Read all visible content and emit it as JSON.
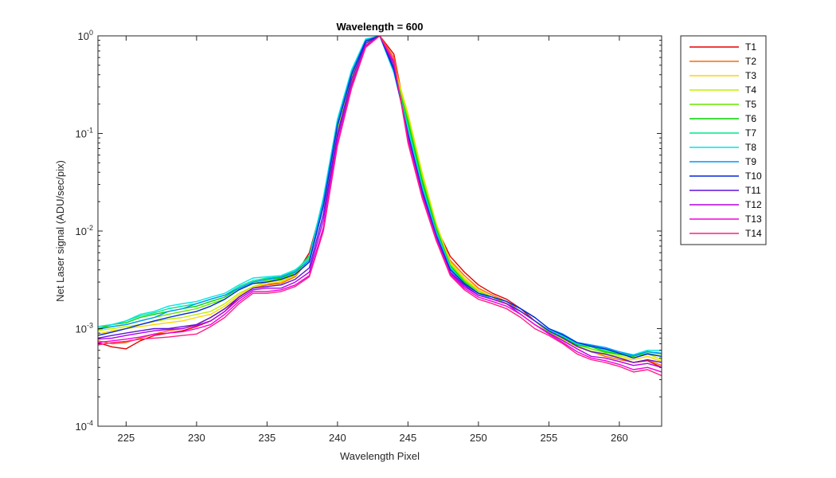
{
  "chart_data": {
    "type": "line",
    "title": "Wavelength = 600",
    "xlabel": "Wavelength Pixel",
    "ylabel": "Net Laser signal  (ADU/sec/pix)",
    "xlim": [
      223,
      263
    ],
    "ylim": [
      0.0001,
      1
    ],
    "yscale": "log",
    "grid": false,
    "legend_position": "outside-top-right",
    "x_ticks": [
      225,
      230,
      235,
      240,
      245,
      250,
      255,
      260
    ],
    "y_ticks": [
      {
        "value": 0.0001,
        "base": "10",
        "exp": "-4"
      },
      {
        "value": 0.001,
        "base": "10",
        "exp": "-3"
      },
      {
        "value": 0.01,
        "base": "10",
        "exp": "-2"
      },
      {
        "value": 0.1,
        "base": "10",
        "exp": "-1"
      },
      {
        "value": 1,
        "base": "10",
        "exp": "0"
      }
    ],
    "x": [
      223,
      224,
      225,
      226,
      227,
      228,
      229,
      230,
      231,
      232,
      233,
      234,
      235,
      236,
      237,
      238,
      239,
      240,
      241,
      242,
      243,
      244,
      245,
      246,
      247,
      248,
      249,
      250,
      251,
      252,
      253,
      254,
      255,
      256,
      257,
      258,
      259,
      260,
      261,
      262,
      263
    ],
    "series": [
      {
        "name": "T1",
        "color": "#e60000",
        "values": [
          0.00072,
          0.00065,
          0.00062,
          0.00075,
          0.00085,
          0.0009,
          0.00095,
          0.00105,
          0.0012,
          0.0015,
          0.0021,
          0.0026,
          0.0028,
          0.003,
          0.0035,
          0.006,
          0.02,
          0.1,
          0.35,
          0.8,
          1.0,
          0.65,
          0.12,
          0.03,
          0.011,
          0.0055,
          0.0038,
          0.0028,
          0.0023,
          0.002,
          0.0016,
          0.0012,
          0.00095,
          0.0008,
          0.00065,
          0.00058,
          0.00055,
          0.0005,
          0.00045,
          0.00047,
          0.0004
        ]
      },
      {
        "name": "T2",
        "color": "#ff6a00",
        "values": [
          0.00075,
          0.0007,
          0.00072,
          0.0008,
          0.00088,
          0.00095,
          0.001,
          0.0011,
          0.0013,
          0.0016,
          0.0021,
          0.0026,
          0.0028,
          0.0029,
          0.0034,
          0.0052,
          0.018,
          0.095,
          0.34,
          0.78,
          1.0,
          0.6,
          0.13,
          0.032,
          0.011,
          0.005,
          0.0035,
          0.0026,
          0.0022,
          0.0019,
          0.0015,
          0.0012,
          0.00093,
          0.00078,
          0.00065,
          0.00058,
          0.00052,
          0.00048,
          0.00045,
          0.00048,
          0.00042
        ]
      },
      {
        "name": "T3",
        "color": "#ffd400",
        "values": [
          0.00088,
          0.00095,
          0.001,
          0.00105,
          0.0011,
          0.00115,
          0.0012,
          0.0013,
          0.0014,
          0.0017,
          0.0022,
          0.0027,
          0.0029,
          0.003,
          0.0035,
          0.0052,
          0.018,
          0.1,
          0.36,
          0.82,
          1.0,
          0.5,
          0.16,
          0.04,
          0.012,
          0.0048,
          0.0033,
          0.0025,
          0.0021,
          0.0018,
          0.0015,
          0.0012,
          0.00092,
          0.00077,
          0.00065,
          0.00058,
          0.00054,
          0.0005,
          0.00048,
          0.00052,
          0.00046
        ]
      },
      {
        "name": "T4",
        "color": "#c0f000",
        "values": [
          0.00095,
          0.001,
          0.00105,
          0.0011,
          0.00118,
          0.00125,
          0.0013,
          0.0014,
          0.0015,
          0.0018,
          0.0023,
          0.0027,
          0.003,
          0.0031,
          0.0036,
          0.0053,
          0.019,
          0.11,
          0.38,
          0.85,
          1.0,
          0.48,
          0.15,
          0.038,
          0.0115,
          0.0047,
          0.0032,
          0.0024,
          0.0021,
          0.0018,
          0.0015,
          0.0012,
          0.0009,
          0.00077,
          0.00066,
          0.00059,
          0.00055,
          0.00052,
          0.0005,
          0.00055,
          0.00048
        ]
      },
      {
        "name": "T5",
        "color": "#66e600",
        "values": [
          0.001,
          0.00105,
          0.0011,
          0.0012,
          0.0013,
          0.0014,
          0.0015,
          0.0016,
          0.0018,
          0.002,
          0.0025,
          0.0029,
          0.0031,
          0.0032,
          0.0037,
          0.0055,
          0.02,
          0.12,
          0.4,
          0.88,
          1.0,
          0.45,
          0.14,
          0.035,
          0.011,
          0.0045,
          0.0031,
          0.0024,
          0.0021,
          0.0018,
          0.0015,
          0.0012,
          0.00092,
          0.0008,
          0.00068,
          0.00062,
          0.00057,
          0.00054,
          0.00052,
          0.00056,
          0.00052
        ]
      },
      {
        "name": "T6",
        "color": "#00d200",
        "values": [
          0.001,
          0.0011,
          0.00115,
          0.0013,
          0.0014,
          0.0015,
          0.0016,
          0.0017,
          0.0019,
          0.0021,
          0.0026,
          0.003,
          0.0032,
          0.0033,
          0.0038,
          0.0056,
          0.021,
          0.13,
          0.42,
          0.9,
          1.0,
          0.43,
          0.13,
          0.033,
          0.0105,
          0.0044,
          0.003,
          0.0023,
          0.002,
          0.0018,
          0.0015,
          0.0012,
          0.00094,
          0.00082,
          0.00068,
          0.00065,
          0.00058,
          0.00055,
          0.00052,
          0.00058,
          0.00055
        ]
      },
      {
        "name": "T7",
        "color": "#00e68c",
        "values": [
          0.00105,
          0.0011,
          0.0012,
          0.00135,
          0.00145,
          0.0016,
          0.0017,
          0.0018,
          0.002,
          0.0022,
          0.0027,
          0.0031,
          0.0033,
          0.0034,
          0.0039,
          0.0055,
          0.022,
          0.14,
          0.44,
          0.92,
          1.0,
          0.42,
          0.12,
          0.03,
          0.01,
          0.0043,
          0.0029,
          0.0023,
          0.002,
          0.0018,
          0.0015,
          0.0012,
          0.00095,
          0.00083,
          0.0007,
          0.00066,
          0.0006,
          0.00056,
          0.00053,
          0.0006,
          0.0006
        ]
      },
      {
        "name": "T8",
        "color": "#00e6e6",
        "values": [
          0.00105,
          0.0011,
          0.0012,
          0.0014,
          0.0015,
          0.0017,
          0.0018,
          0.0019,
          0.0021,
          0.0023,
          0.0028,
          0.0033,
          0.0034,
          0.0035,
          0.004,
          0.0052,
          0.022,
          0.14,
          0.45,
          0.93,
          1.0,
          0.42,
          0.11,
          0.028,
          0.0098,
          0.0042,
          0.0029,
          0.0023,
          0.002,
          0.0018,
          0.0015,
          0.0012,
          0.00097,
          0.00085,
          0.0007,
          0.00066,
          0.00062,
          0.00058,
          0.00054,
          0.0006,
          0.0006
        ]
      },
      {
        "name": "T9",
        "color": "#0096ff",
        "values": [
          0.00098,
          0.00105,
          0.0011,
          0.0012,
          0.0013,
          0.0015,
          0.0016,
          0.0018,
          0.002,
          0.0022,
          0.0026,
          0.003,
          0.0032,
          0.0034,
          0.0038,
          0.005,
          0.02,
          0.13,
          0.42,
          0.9,
          1.0,
          0.44,
          0.1,
          0.027,
          0.0095,
          0.0041,
          0.0029,
          0.0023,
          0.0021,
          0.0019,
          0.0016,
          0.0013,
          0.001,
          0.00088,
          0.00072,
          0.00068,
          0.00064,
          0.00058,
          0.00053,
          0.00058,
          0.00056
        ]
      },
      {
        "name": "T10",
        "color": "#0028dc",
        "values": [
          0.00085,
          0.00092,
          0.001,
          0.0011,
          0.0012,
          0.0013,
          0.0014,
          0.0015,
          0.0017,
          0.002,
          0.0025,
          0.0029,
          0.003,
          0.0032,
          0.0036,
          0.0048,
          0.018,
          0.12,
          0.4,
          0.88,
          1.0,
          0.45,
          0.1,
          0.026,
          0.009,
          0.004,
          0.0029,
          0.0023,
          0.0021,
          0.0019,
          0.0016,
          0.0013,
          0.001,
          0.00086,
          0.00072,
          0.00066,
          0.00062,
          0.00056,
          0.0005,
          0.00055,
          0.00052
        ]
      },
      {
        "name": "T11",
        "color": "#5a14dc",
        "values": [
          0.0008,
          0.00085,
          0.0009,
          0.00095,
          0.001,
          0.001,
          0.00105,
          0.0011,
          0.0013,
          0.0016,
          0.0021,
          0.0026,
          0.0027,
          0.0028,
          0.0032,
          0.0042,
          0.015,
          0.1,
          0.36,
          0.84,
          1.0,
          0.48,
          0.095,
          0.025,
          0.0088,
          0.0038,
          0.0028,
          0.0022,
          0.002,
          0.0018,
          0.0015,
          0.0012,
          0.00095,
          0.0008,
          0.00066,
          0.00058,
          0.00055,
          0.0005,
          0.00045,
          0.00048,
          0.00045
        ]
      },
      {
        "name": "T12",
        "color": "#b400e6",
        "values": [
          0.00078,
          0.0008,
          0.00085,
          0.0009,
          0.00095,
          0.00098,
          0.001,
          0.00108,
          0.0012,
          0.0015,
          0.002,
          0.0025,
          0.0026,
          0.0026,
          0.003,
          0.0038,
          0.013,
          0.09,
          0.32,
          0.8,
          1.0,
          0.52,
          0.09,
          0.024,
          0.0085,
          0.0037,
          0.0027,
          0.0022,
          0.002,
          0.0018,
          0.0014,
          0.0011,
          0.0009,
          0.00075,
          0.00062,
          0.00052,
          0.0005,
          0.00046,
          0.00042,
          0.00044,
          0.0004
        ]
      },
      {
        "name": "T13",
        "color": "#f000dc",
        "values": [
          0.00072,
          0.00075,
          0.00078,
          0.00082,
          0.00088,
          0.0009,
          0.00093,
          0.001,
          0.0011,
          0.0014,
          0.0019,
          0.0024,
          0.0024,
          0.0025,
          0.0028,
          0.0035,
          0.011,
          0.08,
          0.3,
          0.78,
          1.0,
          0.55,
          0.085,
          0.023,
          0.0083,
          0.0036,
          0.0026,
          0.0021,
          0.0019,
          0.0017,
          0.0014,
          0.0011,
          0.00088,
          0.00072,
          0.00058,
          0.0005,
          0.00047,
          0.00043,
          0.00038,
          0.0004,
          0.00036
        ]
      },
      {
        "name": "T14",
        "color": "#ff1e82",
        "values": [
          0.00068,
          0.00072,
          0.00074,
          0.00078,
          0.0008,
          0.00082,
          0.00085,
          0.00088,
          0.00105,
          0.0013,
          0.0018,
          0.0023,
          0.0023,
          0.0024,
          0.0027,
          0.0034,
          0.01,
          0.075,
          0.29,
          0.76,
          1.0,
          0.56,
          0.08,
          0.022,
          0.008,
          0.0035,
          0.0025,
          0.002,
          0.0018,
          0.0016,
          0.0013,
          0.001,
          0.00085,
          0.0007,
          0.00055,
          0.00048,
          0.00045,
          0.00041,
          0.00036,
          0.00038,
          0.00033
        ]
      }
    ]
  }
}
